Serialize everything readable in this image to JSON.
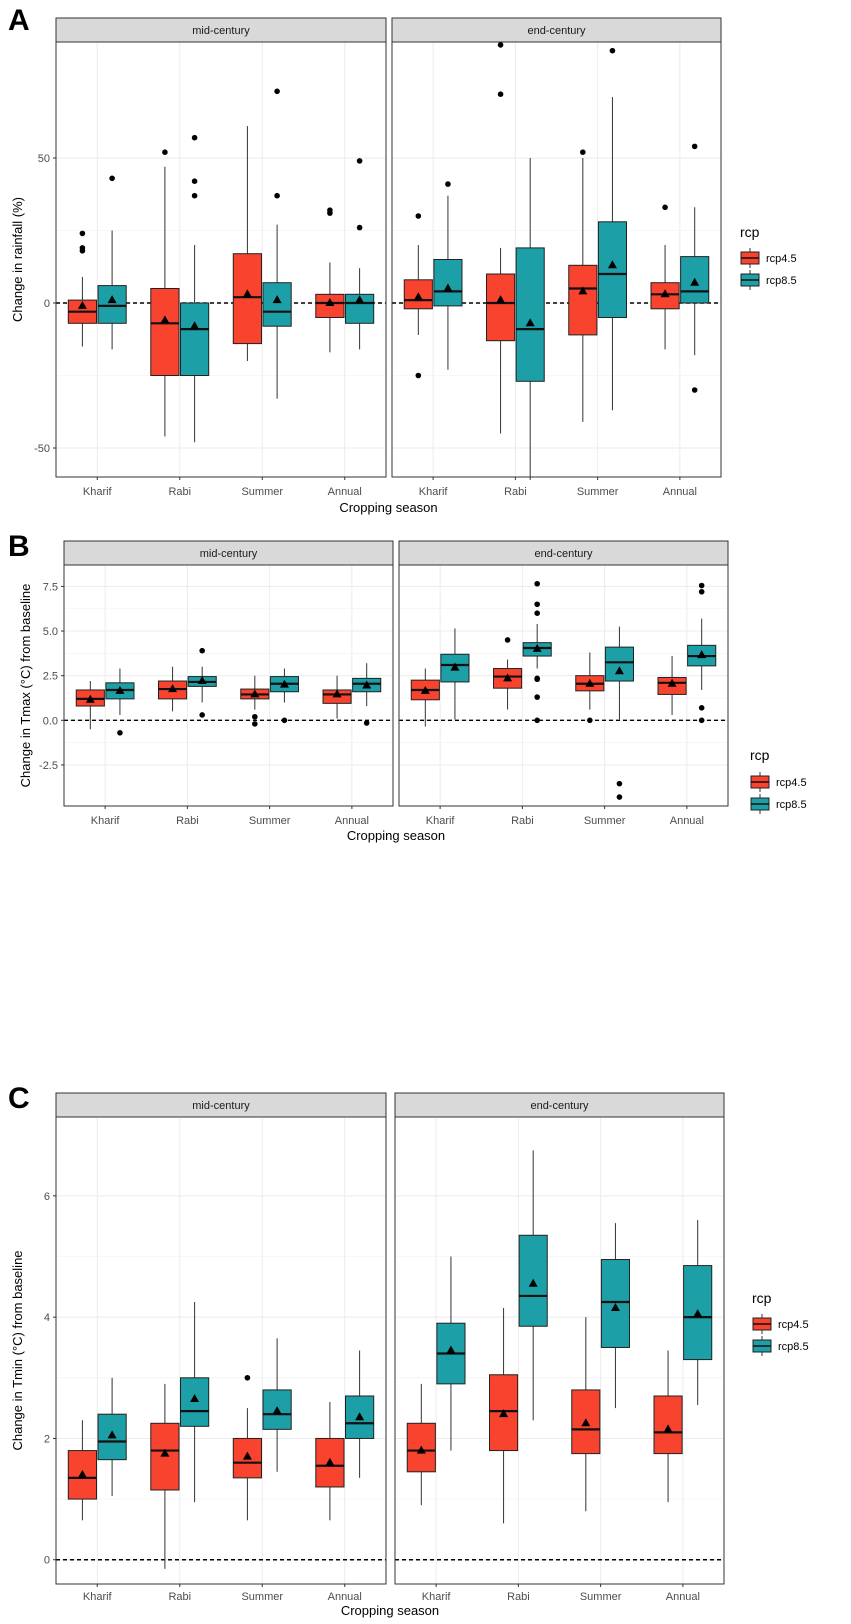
{
  "colors": {
    "rcp4.5": "#f8432f",
    "rcp8.5": "#1c9fa6",
    "strip_fill": "#d9d9d9"
  },
  "chart_data": [
    {
      "type": "boxplot",
      "panel_letter": "A",
      "xlabel": "Cropping season",
      "ylabel": "Change in rainfall (%)",
      "ylim": [
        -60,
        90
      ],
      "yticks": [
        -50,
        0,
        50
      ],
      "categories": [
        "Kharif",
        "Rabi",
        "Summer",
        "Annual"
      ],
      "facets": [
        "mid-century",
        "end-century"
      ],
      "legend": {
        "title": "rcp",
        "entries": [
          "rcp4.5",
          "rcp8.5"
        ]
      },
      "reference_line": 0,
      "series": [
        {
          "name": "rcp4.5",
          "facet": "mid-century",
          "boxes": [
            {
              "category": "Kharif",
              "whisker_low": -15,
              "q1": -7,
              "median": -3,
              "q3": 1,
              "whisker_high": 9,
              "mean": -1,
              "outliers": [
                18,
                19,
                24
              ]
            },
            {
              "category": "Rabi",
              "whisker_low": -46,
              "q1": -25,
              "median": -7,
              "q3": 5,
              "whisker_high": 47,
              "mean": -6,
              "outliers": [
                52
              ]
            },
            {
              "category": "Summer",
              "whisker_low": -20,
              "q1": -14,
              "median": 2,
              "q3": 17,
              "whisker_high": 61,
              "mean": 3,
              "outliers": []
            },
            {
              "category": "Annual",
              "whisker_low": -17,
              "q1": -5,
              "median": 0,
              "q3": 3,
              "whisker_high": 14,
              "mean": 0,
              "outliers": [
                31,
                32
              ]
            }
          ]
        },
        {
          "name": "rcp8.5",
          "facet": "mid-century",
          "boxes": [
            {
              "category": "Kharif",
              "whisker_low": -16,
              "q1": -7,
              "median": -1,
              "q3": 6,
              "whisker_high": 25,
              "mean": 1,
              "outliers": [
                43
              ]
            },
            {
              "category": "Rabi",
              "whisker_low": -48,
              "q1": -25,
              "median": -9,
              "q3": 0,
              "whisker_high": 20,
              "mean": -8,
              "outliers": [
                37,
                42,
                57
              ]
            },
            {
              "category": "Summer",
              "whisker_low": -33,
              "q1": -8,
              "median": -3,
              "q3": 7,
              "whisker_high": 27,
              "mean": 1,
              "outliers": [
                37,
                73
              ]
            },
            {
              "category": "Annual",
              "whisker_low": -16,
              "q1": -7,
              "median": 0,
              "q3": 3,
              "whisker_high": 12,
              "mean": 1,
              "outliers": [
                26,
                49
              ]
            }
          ]
        },
        {
          "name": "rcp4.5",
          "facet": "end-century",
          "boxes": [
            {
              "category": "Kharif",
              "whisker_low": -11,
              "q1": -2,
              "median": 1,
              "q3": 8,
              "whisker_high": 20,
              "mean": 2,
              "outliers": [
                -25,
                30
              ]
            },
            {
              "category": "Rabi",
              "whisker_low": -45,
              "q1": -13,
              "median": 0,
              "q3": 10,
              "whisker_high": 19,
              "mean": 1,
              "outliers": [
                72,
                89
              ]
            },
            {
              "category": "Summer",
              "whisker_low": -41,
              "q1": -11,
              "median": 5,
              "q3": 13,
              "whisker_high": 50,
              "mean": 4,
              "outliers": [
                52
              ]
            },
            {
              "category": "Annual",
              "whisker_low": -16,
              "q1": -2,
              "median": 3,
              "q3": 7,
              "whisker_high": 20,
              "mean": 3,
              "outliers": [
                33
              ]
            }
          ]
        },
        {
          "name": "rcp8.5",
          "facet": "end-century",
          "boxes": [
            {
              "category": "Kharif",
              "whisker_low": -23,
              "q1": -1,
              "median": 4,
              "q3": 15,
              "whisker_high": 37,
              "mean": 5,
              "outliers": [
                41
              ]
            },
            {
              "category": "Rabi",
              "whisker_low": -61,
              "q1": -27,
              "median": -9,
              "q3": 19,
              "whisker_high": 50,
              "mean": -7,
              "outliers": []
            },
            {
              "category": "Summer",
              "whisker_low": -37,
              "q1": -5,
              "median": 10,
              "q3": 28,
              "whisker_high": 71,
              "mean": 13,
              "outliers": [
                87
              ]
            },
            {
              "category": "Annual",
              "whisker_low": -18,
              "q1": 0,
              "median": 4,
              "q3": 16,
              "whisker_high": 33,
              "mean": 7,
              "outliers": [
                -30,
                54
              ]
            }
          ]
        }
      ]
    },
    {
      "type": "boxplot",
      "panel_letter": "B",
      "xlabel": "Cropping season",
      "ylabel": "Change in Tmax (°C) from baseline",
      "ylim": [
        -4.8,
        8.7
      ],
      "yticks": [
        -2.5,
        0.0,
        2.5,
        5.0,
        7.5
      ],
      "ytick_labels": [
        "-2.5",
        "0.0",
        "2.5",
        "5.0",
        "7.5"
      ],
      "categories": [
        "Kharif",
        "Rabi",
        "Summer",
        "Annual"
      ],
      "facets": [
        "mid-century",
        "end-century"
      ],
      "legend": {
        "title": "rcp",
        "entries": [
          "rcp4.5",
          "rcp8.5"
        ]
      },
      "reference_line": 0,
      "series": [
        {
          "name": "rcp4.5",
          "facet": "mid-century",
          "boxes": [
            {
              "category": "Kharif",
              "whisker_low": -0.5,
              "q1": 0.8,
              "median": 1.2,
              "q3": 1.7,
              "whisker_high": 2.2,
              "mean": 1.15,
              "outliers": []
            },
            {
              "category": "Rabi",
              "whisker_low": 0.5,
              "q1": 1.2,
              "median": 1.75,
              "q3": 2.2,
              "whisker_high": 3.0,
              "mean": 1.75,
              "outliers": []
            },
            {
              "category": "Summer",
              "whisker_low": 0.6,
              "q1": 1.2,
              "median": 1.45,
              "q3": 1.75,
              "whisker_high": 2.5,
              "mean": 1.45,
              "outliers": [
                -0.2,
                0.2
              ]
            },
            {
              "category": "Annual",
              "whisker_low": 0.1,
              "q1": 0.95,
              "median": 1.45,
              "q3": 1.7,
              "whisker_high": 2.5,
              "mean": 1.45,
              "outliers": []
            }
          ]
        },
        {
          "name": "rcp8.5",
          "facet": "mid-century",
          "boxes": [
            {
              "category": "Kharif",
              "whisker_low": 0.3,
              "q1": 1.2,
              "median": 1.7,
              "q3": 2.1,
              "whisker_high": 2.9,
              "mean": 1.65,
              "outliers": [
                -0.7
              ]
            },
            {
              "category": "Rabi",
              "whisker_low": 1.0,
              "q1": 1.9,
              "median": 2.15,
              "q3": 2.45,
              "whisker_high": 3.0,
              "mean": 2.2,
              "outliers": [
                0.3,
                3.9
              ]
            },
            {
              "category": "Summer",
              "whisker_low": 1.0,
              "q1": 1.6,
              "median": 2.05,
              "q3": 2.45,
              "whisker_high": 2.9,
              "mean": 2.0,
              "outliers": [
                0.0
              ]
            },
            {
              "category": "Annual",
              "whisker_low": 0.8,
              "q1": 1.6,
              "median": 2.05,
              "q3": 2.35,
              "whisker_high": 3.2,
              "mean": 1.95,
              "outliers": [
                -0.15
              ]
            }
          ]
        },
        {
          "name": "rcp4.5",
          "facet": "end-century",
          "boxes": [
            {
              "category": "Kharif",
              "whisker_low": -0.35,
              "q1": 1.15,
              "median": 1.7,
              "q3": 2.25,
              "whisker_high": 2.9,
              "mean": 1.65,
              "outliers": []
            },
            {
              "category": "Rabi",
              "whisker_low": 0.6,
              "q1": 1.8,
              "median": 2.45,
              "q3": 2.9,
              "whisker_high": 3.4,
              "mean": 2.35,
              "outliers": [
                4.5
              ]
            },
            {
              "category": "Summer",
              "whisker_low": 0.6,
              "q1": 1.65,
              "median": 2.05,
              "q3": 2.5,
              "whisker_high": 3.8,
              "mean": 2.05,
              "outliers": [
                0.0
              ]
            },
            {
              "category": "Annual",
              "whisker_low": 0.3,
              "q1": 1.45,
              "median": 2.1,
              "q3": 2.4,
              "whisker_high": 3.6,
              "mean": 2.05,
              "outliers": []
            }
          ]
        },
        {
          "name": "rcp8.5",
          "facet": "end-century",
          "boxes": [
            {
              "category": "Kharif",
              "whisker_low": 0.05,
              "q1": 2.15,
              "median": 3.1,
              "q3": 3.7,
              "whisker_high": 5.15,
              "mean": 2.95,
              "outliers": []
            },
            {
              "category": "Rabi",
              "whisker_low": 2.9,
              "q1": 3.6,
              "median": 4.05,
              "q3": 4.35,
              "whisker_high": 5.4,
              "mean": 4.0,
              "outliers": [
                0.0,
                1.3,
                2.3,
                2.35,
                6.0,
                6.5,
                7.65
              ]
            },
            {
              "category": "Summer",
              "whisker_low": 0.05,
              "q1": 2.2,
              "median": 3.25,
              "q3": 4.1,
              "whisker_high": 5.25,
              "mean": 2.75,
              "outliers": [
                -3.55,
                -4.3
              ]
            },
            {
              "category": "Annual",
              "whisker_low": 1.7,
              "q1": 3.05,
              "median": 3.6,
              "q3": 4.2,
              "whisker_high": 5.7,
              "mean": 3.65,
              "outliers": [
                0.0,
                0.7,
                7.2,
                7.55
              ]
            }
          ]
        }
      ]
    },
    {
      "type": "boxplot",
      "panel_letter": "C",
      "xlabel": "Cropping season",
      "ylabel": "Change in Tmin (°C) from baseline",
      "ylim": [
        -0.4,
        7.3
      ],
      "yticks": [
        0,
        2,
        4,
        6
      ],
      "categories": [
        "Kharif",
        "Rabi",
        "Summer",
        "Annual"
      ],
      "facets": [
        "mid-century",
        "end-century"
      ],
      "legend": {
        "title": "rcp",
        "entries": [
          "rcp4.5",
          "rcp8.5"
        ]
      },
      "reference_line": 0,
      "series": [
        {
          "name": "rcp4.5",
          "facet": "mid-century",
          "boxes": [
            {
              "category": "Kharif",
              "whisker_low": 0.65,
              "q1": 1.0,
              "median": 1.35,
              "q3": 1.8,
              "whisker_high": 2.3,
              "mean": 1.4,
              "outliers": []
            },
            {
              "category": "Rabi",
              "whisker_low": -0.15,
              "q1": 1.15,
              "median": 1.8,
              "q3": 2.25,
              "whisker_high": 2.9,
              "mean": 1.75,
              "outliers": []
            },
            {
              "category": "Summer",
              "whisker_low": 0.65,
              "q1": 1.35,
              "median": 1.6,
              "q3": 2.0,
              "whisker_high": 2.5,
              "mean": 1.7,
              "outliers": [
                3.0
              ]
            },
            {
              "category": "Annual",
              "whisker_low": 0.65,
              "q1": 1.2,
              "median": 1.55,
              "q3": 2.0,
              "whisker_high": 2.6,
              "mean": 1.6,
              "outliers": []
            }
          ]
        },
        {
          "name": "rcp8.5",
          "facet": "mid-century",
          "boxes": [
            {
              "category": "Kharif",
              "whisker_low": 1.05,
              "q1": 1.65,
              "median": 1.95,
              "q3": 2.4,
              "whisker_high": 3.0,
              "mean": 2.05,
              "outliers": []
            },
            {
              "category": "Rabi",
              "whisker_low": 0.95,
              "q1": 2.2,
              "median": 2.45,
              "q3": 3.0,
              "whisker_high": 4.25,
              "mean": 2.65,
              "outliers": []
            },
            {
              "category": "Summer",
              "whisker_low": 1.45,
              "q1": 2.15,
              "median": 2.4,
              "q3": 2.8,
              "whisker_high": 3.65,
              "mean": 2.45,
              "outliers": []
            },
            {
              "category": "Annual",
              "whisker_low": 1.35,
              "q1": 2.0,
              "median": 2.25,
              "q3": 2.7,
              "whisker_high": 3.45,
              "mean": 2.35,
              "outliers": []
            }
          ]
        },
        {
          "name": "rcp4.5",
          "facet": "end-century",
          "boxes": [
            {
              "category": "Kharif",
              "whisker_low": 0.9,
              "q1": 1.45,
              "median": 1.8,
              "q3": 2.25,
              "whisker_high": 2.9,
              "mean": 1.8,
              "outliers": []
            },
            {
              "category": "Rabi",
              "whisker_low": 0.6,
              "q1": 1.8,
              "median": 2.45,
              "q3": 3.05,
              "whisker_high": 4.15,
              "mean": 2.4,
              "outliers": []
            },
            {
              "category": "Summer",
              "whisker_low": 0.8,
              "q1": 1.75,
              "median": 2.15,
              "q3": 2.8,
              "whisker_high": 4.0,
              "mean": 2.25,
              "outliers": []
            },
            {
              "category": "Annual",
              "whisker_low": 0.95,
              "q1": 1.75,
              "median": 2.1,
              "q3": 2.7,
              "whisker_high": 3.45,
              "mean": 2.15,
              "outliers": []
            }
          ]
        },
        {
          "name": "rcp8.5",
          "facet": "end-century",
          "boxes": [
            {
              "category": "Kharif",
              "whisker_low": 1.8,
              "q1": 2.9,
              "median": 3.4,
              "q3": 3.9,
              "whisker_high": 5.0,
              "mean": 3.45,
              "outliers": []
            },
            {
              "category": "Rabi",
              "whisker_low": 2.3,
              "q1": 3.85,
              "median": 4.35,
              "q3": 5.35,
              "whisker_high": 6.75,
              "mean": 4.55,
              "outliers": []
            },
            {
              "category": "Summer",
              "whisker_low": 2.5,
              "q1": 3.5,
              "median": 4.25,
              "q3": 4.95,
              "whisker_high": 5.55,
              "mean": 4.15,
              "outliers": []
            },
            {
              "category": "Annual",
              "whisker_low": 2.55,
              "q1": 3.3,
              "median": 4.0,
              "q3": 4.85,
              "whisker_high": 5.6,
              "mean": 4.05,
              "outliers": []
            }
          ]
        }
      ]
    }
  ]
}
